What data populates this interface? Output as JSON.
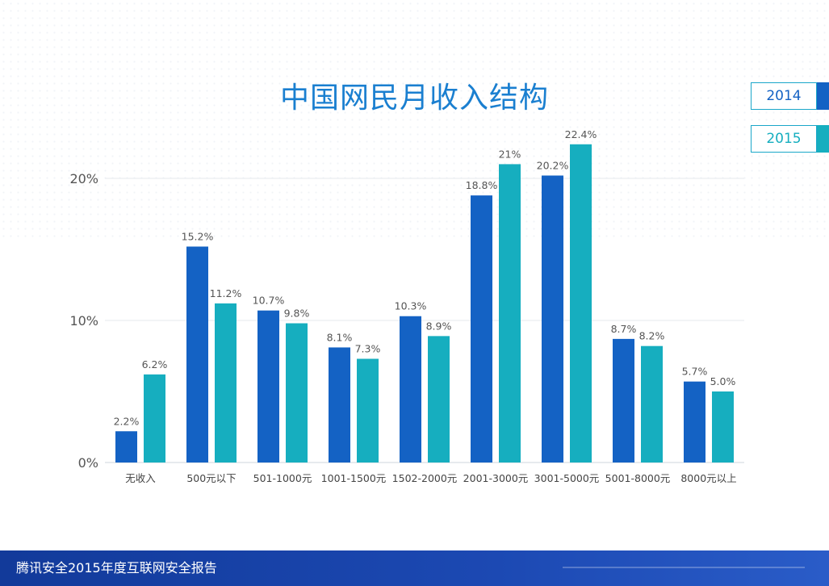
{
  "chart_data": {
    "type": "bar",
    "title": "中国网民月收入结构",
    "categories": [
      "无收入",
      "500元以下",
      "501-1000元",
      "1001-1500元",
      "1502-2000元",
      "2001-3000元",
      "3001-5000元",
      "5001-8000元",
      "8000元以上"
    ],
    "series": [
      {
        "name": "2014",
        "values": [
          2.2,
          15.2,
          10.7,
          8.1,
          10.3,
          18.8,
          20.2,
          8.7,
          5.7
        ],
        "labels": [
          "2.2%",
          "15.2%",
          "10.7%",
          "8.1%",
          "10.3%",
          "18.8%",
          "20.2%",
          "8.7%",
          "5.7%"
        ],
        "color": "#1462c4"
      },
      {
        "name": "2015",
        "values": [
          6.2,
          11.2,
          9.8,
          7.3,
          8.9,
          21,
          22.4,
          8.2,
          5.0
        ],
        "labels": [
          "6.2%",
          "11.2%",
          "9.8%",
          "7.3%",
          "8.9%",
          "21%",
          "22.4%",
          "8.2%",
          "5.0%"
        ],
        "color": "#16aebf"
      }
    ],
    "yticks": [
      "0%",
      "10%",
      "20%"
    ],
    "ytick_values": [
      0,
      10,
      20
    ],
    "ylim": [
      0,
      25
    ],
    "grid": true,
    "legend_position": "top-right"
  },
  "footer": {
    "text": "腾讯安全2015年度互联网安全报告"
  }
}
